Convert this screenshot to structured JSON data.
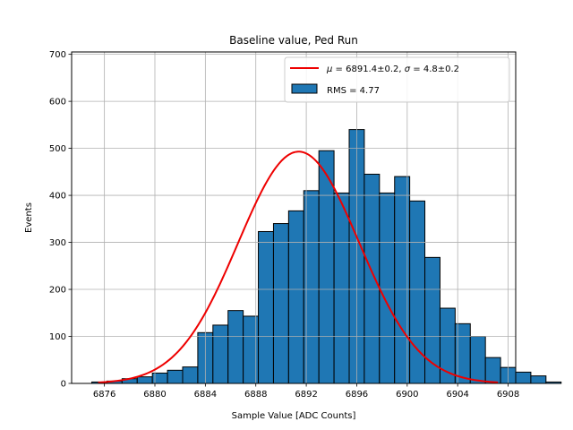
{
  "chart_data": {
    "type": "bar",
    "title": "Baseline value, Ped Run",
    "xlabel": "Sample Value [ADC Counts]",
    "ylabel": "Events",
    "xlim": [
      6873.4,
      6908.6
    ],
    "ylim": [
      0,
      705
    ],
    "xticks": [
      6876,
      6880,
      6884,
      6888,
      6892,
      6896,
      6900,
      6904,
      6908
    ],
    "yticks": [
      0,
      100,
      200,
      300,
      400,
      500,
      600,
      700
    ],
    "grid": true,
    "legend_position": "top-right",
    "histogram": {
      "name": "RMS = 4.77",
      "color": "#1f77b4",
      "edge_color": "#000000",
      "bin_start": 6875,
      "bin_width": 1.2,
      "values": [
        3,
        5,
        10,
        14,
        22,
        28,
        35,
        108,
        124,
        155,
        143,
        323,
        340,
        367,
        410,
        495,
        405,
        540,
        445,
        405,
        440,
        388,
        268,
        160,
        127,
        100,
        55,
        34,
        24,
        16,
        3
      ]
    },
    "fit": {
      "name": "$\\mu = 6891.4 \\pm 0.2$, $\\sigma = 4.8 \\pm 0.2$",
      "legend_parts": [
        "μ",
        " = 6891.4±0.2, ",
        "σ",
        " = 4.8±0.2"
      ],
      "color": "#ee0000",
      "mu": 6891.4,
      "sigma": 4.8,
      "amplitude": 493,
      "x_range": [
        6875.5,
        6907.2
      ]
    }
  }
}
